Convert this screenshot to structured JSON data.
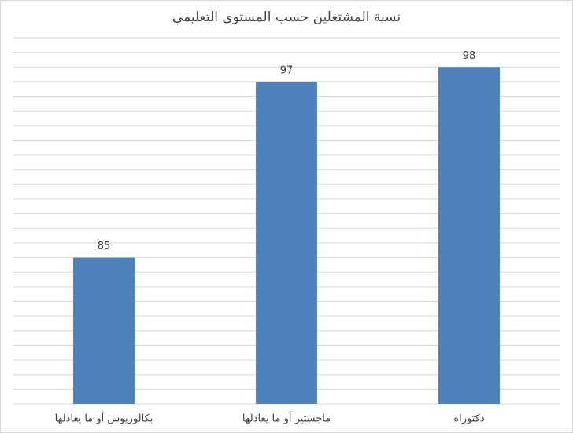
{
  "chart_data": {
    "type": "bar",
    "title": "نسبة المشتغلين حسب المستوى التعليمي",
    "categories": [
      "بكالوريوس  أو ما يعادلها",
      "ماجستير أو ما يعادلها",
      "دكتوراه"
    ],
    "values": [
      85,
      97,
      98
    ],
    "color": "#4f81bd",
    "ylim": [
      75,
      100
    ],
    "yticks": [
      75,
      76,
      77,
      78,
      79,
      80,
      81,
      82,
      83,
      84,
      85,
      86,
      87,
      88,
      89,
      90,
      91,
      92,
      93,
      94,
      95,
      96,
      97,
      98,
      99,
      100
    ],
    "grid": true,
    "data_labels": true
  }
}
